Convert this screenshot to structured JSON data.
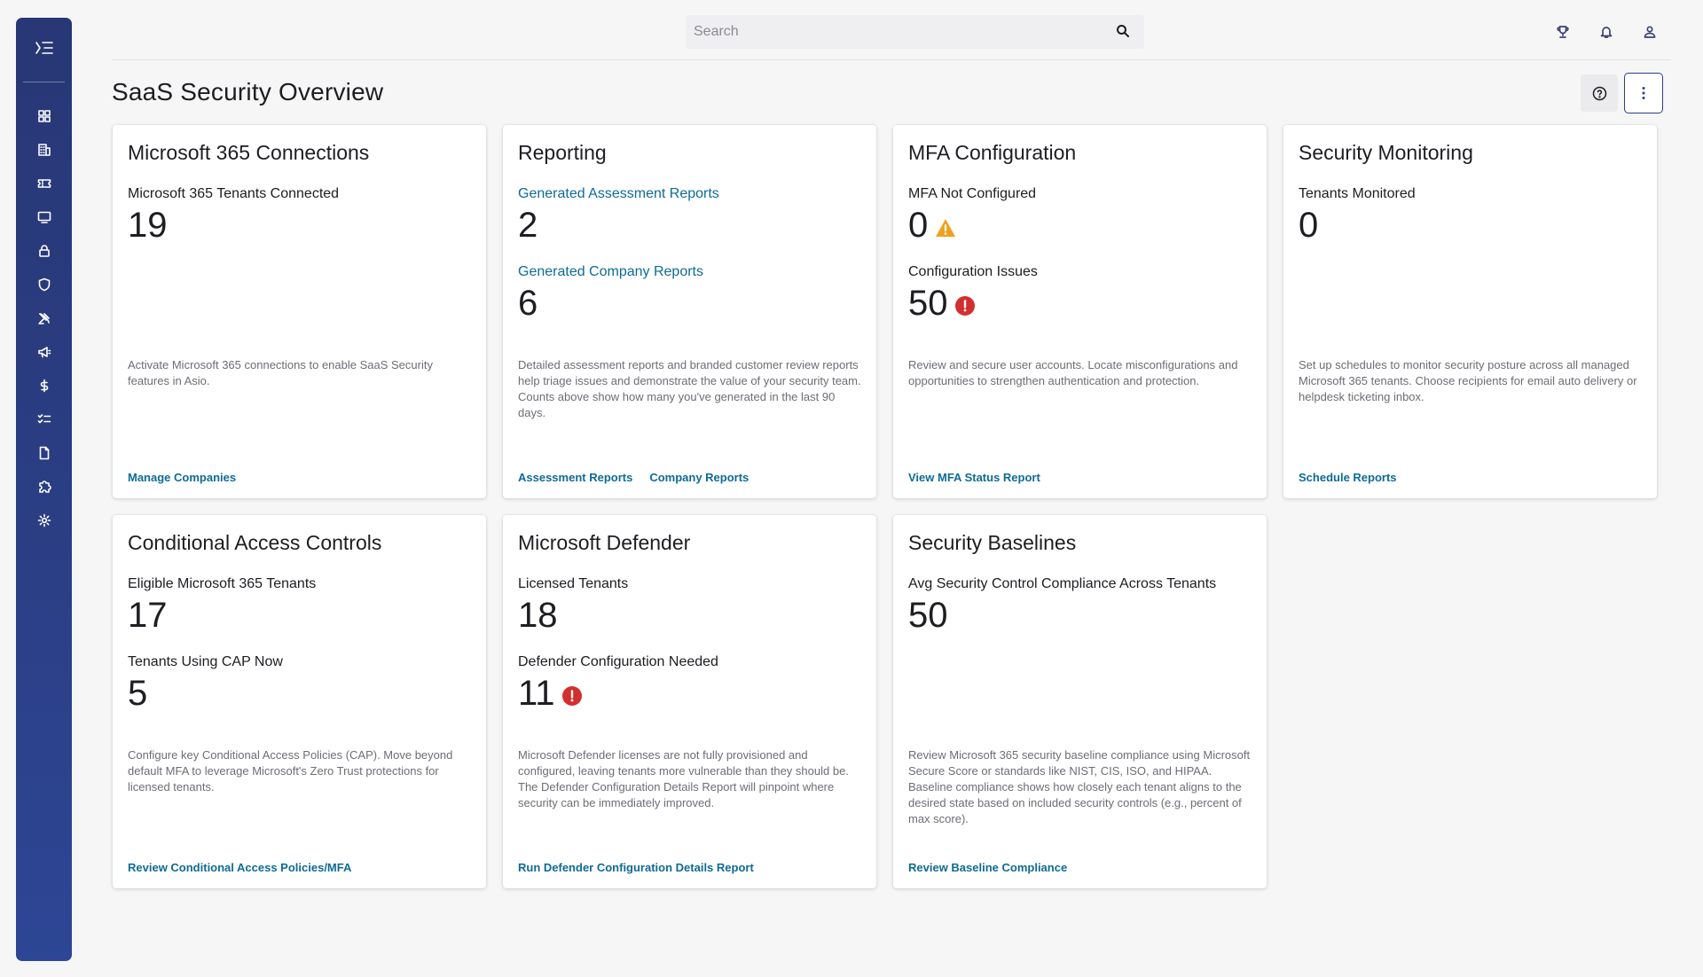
{
  "search": {
    "placeholder": "Search"
  },
  "header_icons": [
    "trophy-icon",
    "bell-icon",
    "user-icon"
  ],
  "sidebar": {
    "icons": [
      "dashboard-icon",
      "building-icon",
      "ticket-icon",
      "monitor-icon",
      "lock-icon",
      "shield-icon",
      "satellite-icon",
      "megaphone-icon",
      "dollar-icon",
      "checklist-icon",
      "document-icon",
      "puzzle-icon",
      "settings-icon"
    ]
  },
  "page": {
    "title": "SaaS Security Overview"
  },
  "colors": {
    "sidebar": "#2b3f86",
    "link": "#0e6b96",
    "warning": "#f0a020",
    "error": "#d32f2f"
  },
  "cards": [
    {
      "title": "Microsoft 365 Connections",
      "metrics": [
        {
          "label": "Microsoft 365 Tenants Connected",
          "value": "19"
        }
      ],
      "description": "Activate Microsoft 365 connections to enable SaaS Security features in Asio.",
      "actions": [
        "Manage Companies"
      ]
    },
    {
      "title": "Reporting",
      "metrics": [
        {
          "label": "Generated Assessment Reports",
          "value": "2"
        },
        {
          "label": "Generated Company Reports",
          "value": "6"
        }
      ],
      "description": "Detailed assessment reports and branded customer review reports help triage issues and demonstrate the value of your security team. Counts above show how many you've generated in the last 90 days.",
      "actions": [
        "Assessment Reports",
        "Company Reports"
      ]
    },
    {
      "title": "MFA Configuration",
      "metrics": [
        {
          "label": "MFA Not Configured",
          "value": "0",
          "status": "warning-icon"
        },
        {
          "label": "Configuration Issues",
          "value": "50",
          "status": "error-icon"
        }
      ],
      "description": "Review and secure user accounts. Locate misconfigurations and opportunities to strengthen authentication and protection.",
      "actions": [
        "View MFA Status Report"
      ]
    },
    {
      "title": "Security Monitoring",
      "metrics": [
        {
          "label": "Tenants Monitored",
          "value": "0"
        }
      ],
      "description": "Set up schedules to monitor security posture across all managed Microsoft 365 tenants. Choose recipients for email auto delivery or helpdesk ticketing inbox.",
      "actions": [
        "Schedule Reports"
      ]
    },
    {
      "title": "Conditional Access Controls",
      "metrics": [
        {
          "label": "Eligible Microsoft 365 Tenants",
          "value": "17"
        },
        {
          "label": "Tenants Using CAP Now",
          "value": "5"
        }
      ],
      "description": "Configure key Conditional Access Policies (CAP). Move beyond default MFA to leverage Microsoft's Zero Trust protections for licensed tenants.",
      "actions": [
        "Review Conditional Access Policies/MFA"
      ]
    },
    {
      "title": "Microsoft Defender",
      "metrics": [
        {
          "label": "Licensed Tenants",
          "value": "18"
        },
        {
          "label": "Defender Configuration Needed",
          "value": "11",
          "status": "error-icon"
        }
      ],
      "description": "Microsoft Defender licenses are not fully provisioned and configured, leaving tenants more vulnerable than they should be. The Defender Configuration Details Report will pinpoint where security can be immediately improved.",
      "actions": [
        "Run Defender Configuration Details Report"
      ]
    },
    {
      "title": "Security Baselines",
      "metrics": [
        {
          "label": "Avg Security Control Compliance Across Tenants",
          "value": "50"
        }
      ],
      "description": "Review Microsoft 365 security baseline compliance using Microsoft Secure Score or standards like NIST, CIS, ISO, and HIPAA. Baseline compliance shows how closely each tenant aligns to the desired state based on included security controls (e.g., percent of max score).",
      "actions": [
        "Review Baseline Compliance"
      ]
    }
  ]
}
